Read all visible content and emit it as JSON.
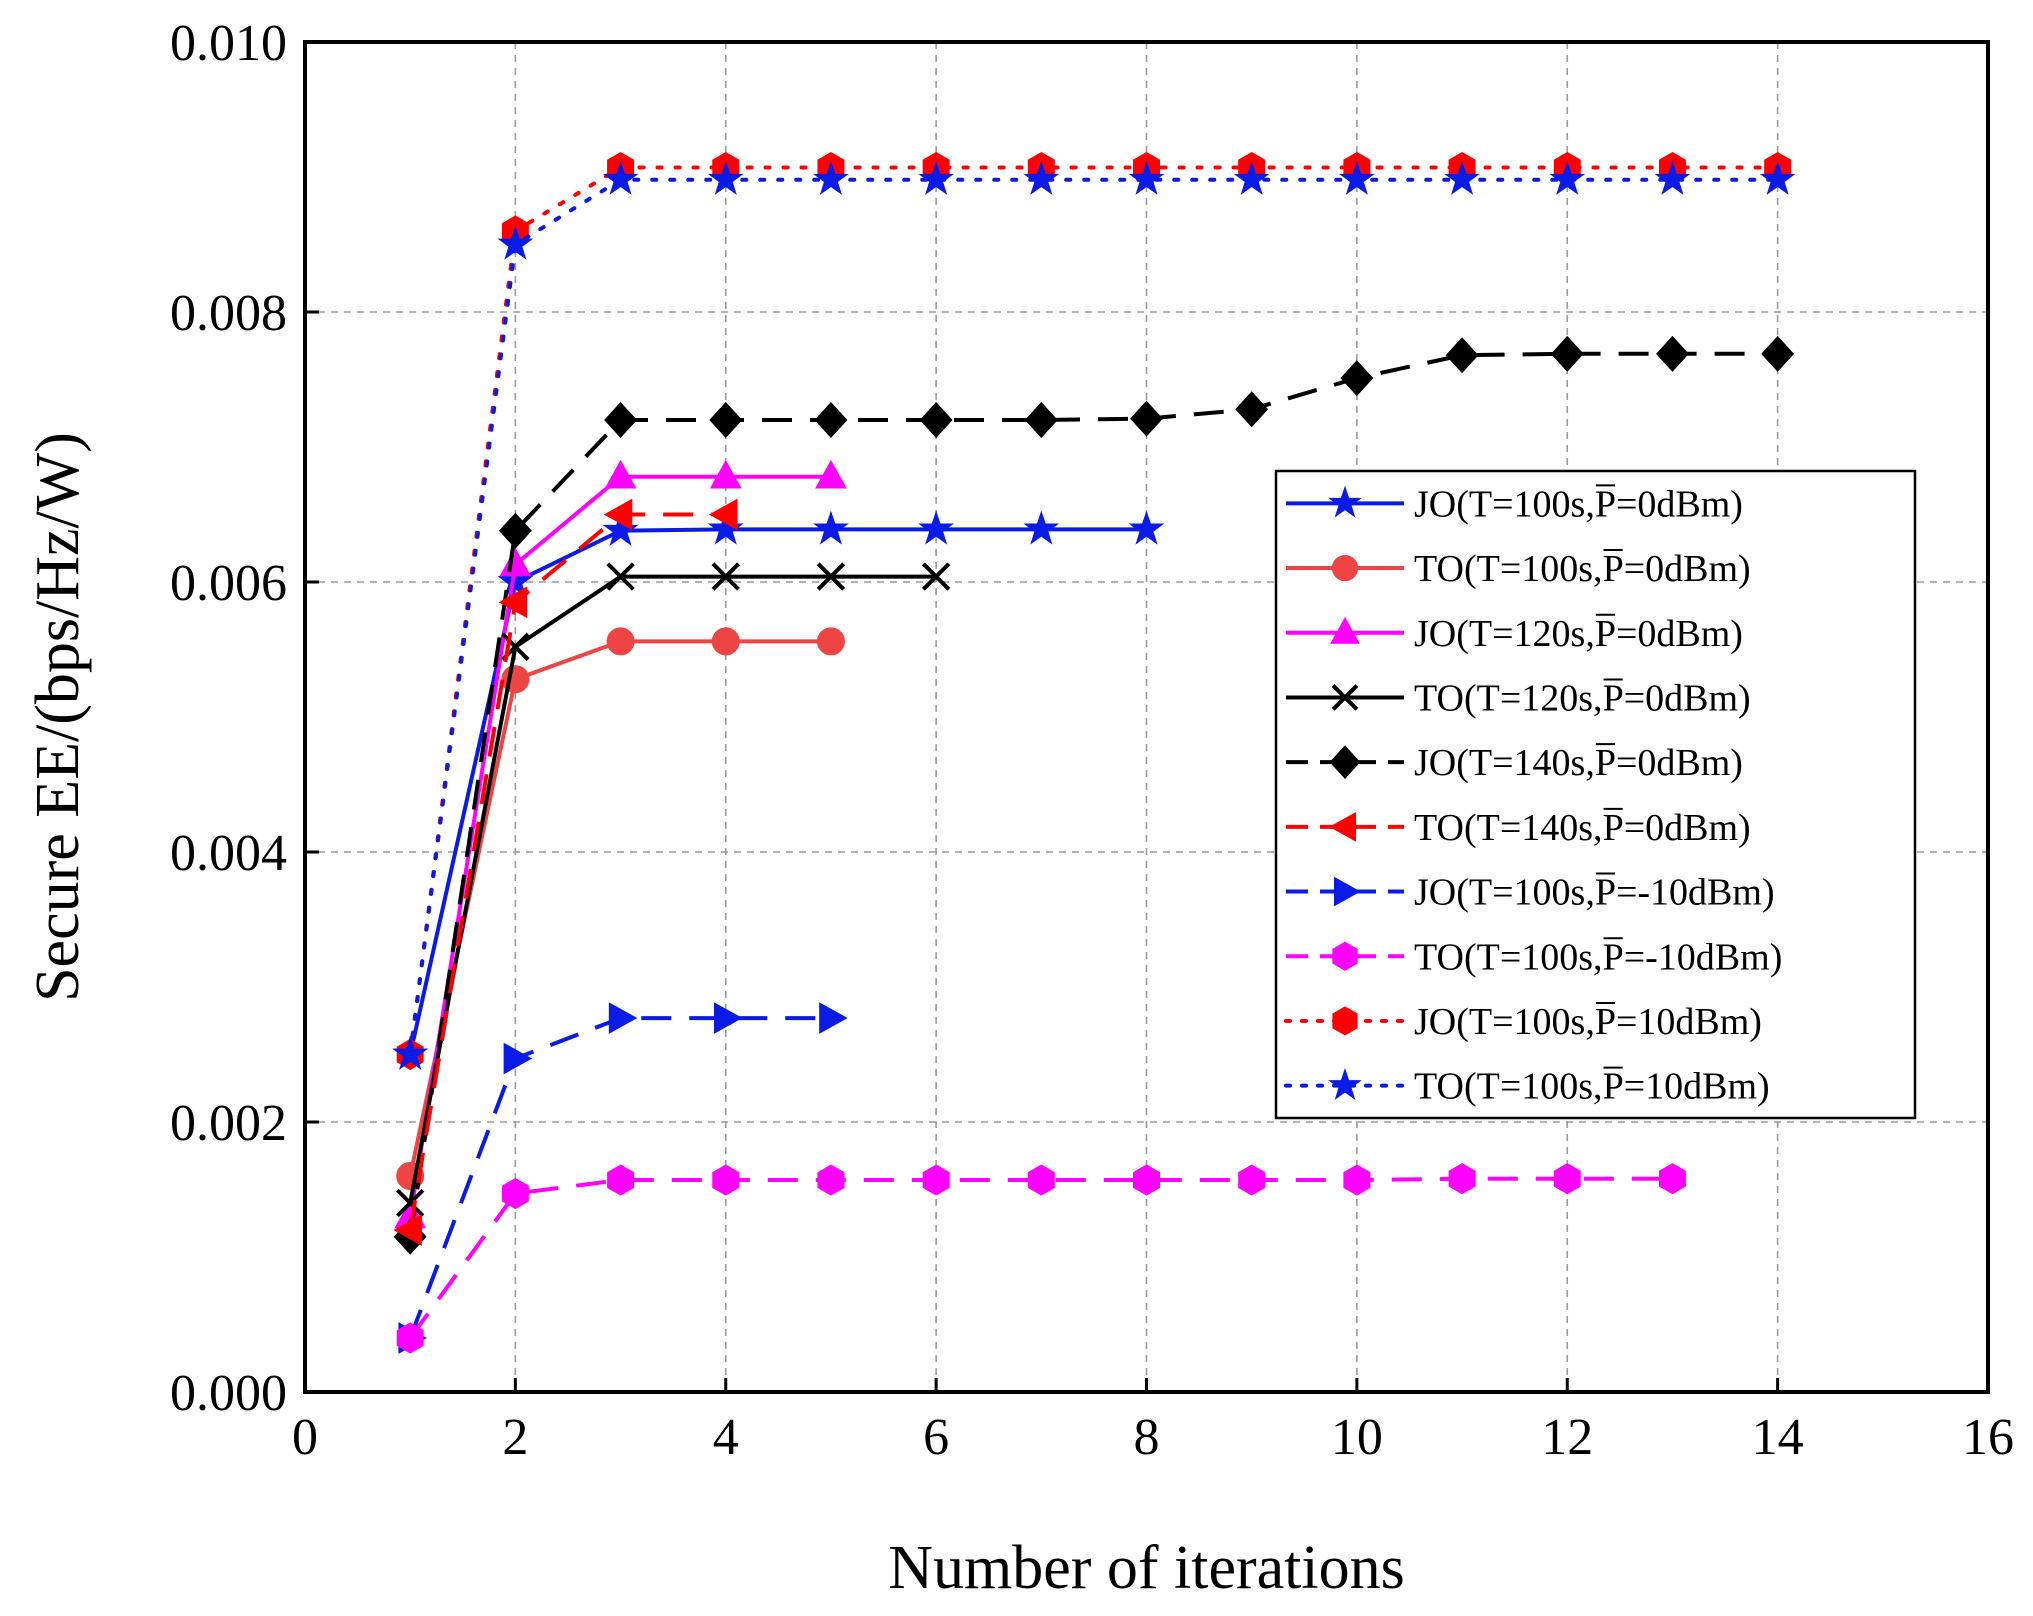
{
  "chart_data": {
    "type": "line",
    "title": "",
    "xlabel": "Number of iterations",
    "ylabel": "Secure EE/(bps/Hz/W)",
    "xlim": [
      0,
      16
    ],
    "ylim": [
      0,
      0.01
    ],
    "xticks": [
      0,
      2,
      4,
      6,
      8,
      10,
      12,
      14,
      16
    ],
    "xtick_labels": [
      "0",
      "2",
      "4",
      "6",
      "8",
      "10",
      "12",
      "14",
      "16"
    ],
    "yticks": [
      0,
      0.002,
      0.004,
      0.006,
      0.008,
      0.01
    ],
    "ytick_labels": [
      "0.000",
      "0.002",
      "0.004",
      "0.006",
      "0.008",
      "0.010"
    ],
    "grid": true,
    "legend_position": "right",
    "series": [
      {
        "name": "JO(T=100s,P=0dBm)",
        "legend_prefix": "JO(T=100s,",
        "legend_suffix": "=0dBm)",
        "color": "#0a1be6",
        "dash": "solid",
        "marker": "star",
        "x": [
          1,
          2,
          3,
          4,
          5,
          6,
          7,
          8
        ],
        "values": [
          0.0025,
          0.006,
          0.00638,
          0.00639,
          0.00639,
          0.00639,
          0.00639,
          0.00639
        ]
      },
      {
        "name": "TO(T=100s,P=0dBm)",
        "legend_prefix": "TO(T=100s,",
        "legend_suffix": "=0dBm)",
        "color": "#ee4444",
        "dash": "solid",
        "marker": "circle",
        "x": [
          1,
          2,
          3,
          4,
          5
        ],
        "values": [
          0.0016,
          0.00528,
          0.00556,
          0.00556,
          0.00556
        ]
      },
      {
        "name": "JO(T=120s,P=0dBm)",
        "legend_prefix": "JO(T=120s,",
        "legend_suffix": "=0dBm)",
        "color": "#ff00ff",
        "dash": "solid",
        "marker": "triangle-up",
        "x": [
          1,
          2,
          3,
          4,
          5
        ],
        "values": [
          0.0013,
          0.00613,
          0.00678,
          0.00678,
          0.00678
        ]
      },
      {
        "name": "TO(T=120s,P=0dBm)",
        "legend_prefix": "TO(T=120s,",
        "legend_suffix": "=0dBm)",
        "color": "#000000",
        "dash": "solid",
        "marker": "x",
        "x": [
          1,
          2,
          3,
          4,
          5,
          6
        ],
        "values": [
          0.0014,
          0.00552,
          0.00604,
          0.00604,
          0.00604,
          0.00604
        ]
      },
      {
        "name": "JO(T=140s,P=0dBm)",
        "legend_prefix": "JO(T=140s,",
        "legend_suffix": "=0dBm)",
        "color": "#000000",
        "dash": "long",
        "marker": "diamond",
        "x": [
          1,
          2,
          3,
          4,
          5,
          6,
          7,
          8,
          9,
          10,
          11,
          12,
          13,
          14
        ],
        "values": [
          0.00115,
          0.00638,
          0.0072,
          0.0072,
          0.0072,
          0.0072,
          0.0072,
          0.00721,
          0.00728,
          0.00751,
          0.00768,
          0.00769,
          0.00769,
          0.00769
        ]
      },
      {
        "name": "TO(T=140s,P=0dBm)",
        "legend_prefix": "TO(T=140s,",
        "legend_suffix": "=0dBm)",
        "color": "#ff0000",
        "dash": "long",
        "marker": "triangle-left",
        "x": [
          1,
          2,
          3,
          4
        ],
        "values": [
          0.0012,
          0.00585,
          0.0065,
          0.0065
        ]
      },
      {
        "name": "JO(T=100s,P=-10dBm)",
        "legend_prefix": "JO(T=100s,",
        "legend_suffix": "=-10dBm)",
        "color": "#0a1be6",
        "dash": "long",
        "marker": "triangle-right",
        "x": [
          1,
          2,
          3,
          4,
          5
        ],
        "values": [
          0.0004,
          0.00247,
          0.00277,
          0.00277,
          0.00277
        ]
      },
      {
        "name": "TO(T=100s,P=-10dBm)",
        "legend_prefix": "TO(T=100s,",
        "legend_suffix": "=-10dBm)",
        "color": "#ff00ff",
        "dash": "long",
        "marker": "hexagon",
        "x": [
          1,
          2,
          3,
          4,
          5,
          6,
          7,
          8,
          9,
          10,
          11,
          12,
          13
        ],
        "values": [
          0.0004,
          0.00147,
          0.00157,
          0.00157,
          0.00157,
          0.00157,
          0.00157,
          0.00157,
          0.00157,
          0.00157,
          0.00158,
          0.00158,
          0.00158
        ]
      },
      {
        "name": "JO(T=100s,P=10dBm)",
        "legend_prefix": "JO(T=100s,",
        "legend_suffix": "=10dBm)",
        "color": "#ff0000",
        "dash": "dotted",
        "marker": "hexagon",
        "x": [
          1,
          2,
          3,
          4,
          5,
          6,
          7,
          8,
          9,
          10,
          11,
          12,
          13,
          14
        ],
        "values": [
          0.0025,
          0.0086,
          0.00907,
          0.00907,
          0.00907,
          0.00907,
          0.00907,
          0.00907,
          0.00907,
          0.00907,
          0.00907,
          0.00907,
          0.00907,
          0.00907
        ]
      },
      {
        "name": "TO(T=100s,P=10dBm)",
        "legend_prefix": "TO(T=100s,",
        "legend_suffix": "=10dBm)",
        "color": "#0a1be6",
        "dash": "dotted",
        "marker": "star",
        "x": [
          1,
          2,
          3,
          4,
          5,
          6,
          7,
          8,
          9,
          10,
          11,
          12,
          13,
          14
        ],
        "values": [
          0.0025,
          0.0085,
          0.00898,
          0.00898,
          0.00898,
          0.00898,
          0.00898,
          0.00898,
          0.00898,
          0.00898,
          0.00898,
          0.00898,
          0.00898,
          0.00898
        ]
      }
    ]
  }
}
